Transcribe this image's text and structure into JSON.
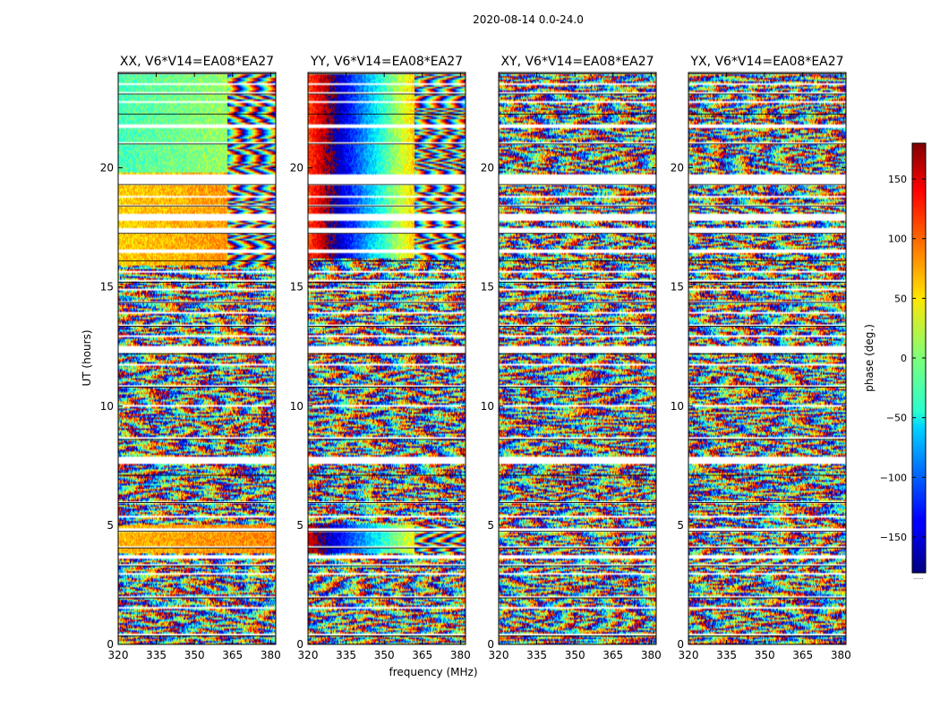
{
  "figure": {
    "suptitle": "2020-08-14 0.0-24.0",
    "xlabel": "frequency (MHz)",
    "ylabel": "UT (hours)",
    "colorbar_label": "phase (deg.)",
    "colorbar_extra": "......"
  },
  "chart_data": {
    "type": "heatmap",
    "colormap": "jet",
    "x_range": [
      320,
      382
    ],
    "y_range": [
      0,
      24
    ],
    "color_range": [
      -180,
      180
    ],
    "x_ticks": [
      320,
      335,
      350,
      365,
      380
    ],
    "y_ticks": [
      0,
      5,
      10,
      15,
      20
    ],
    "colorbar_ticks": [
      -150,
      -100,
      -50,
      0,
      50,
      100,
      150
    ],
    "flagged_hours": [
      [
        0.35,
        0.45
      ],
      [
        1.5,
        1.6
      ],
      [
        1.95,
        2.05
      ],
      [
        2.9,
        2.98
      ],
      [
        3.3,
        3.38
      ],
      [
        3.62,
        3.78
      ],
      [
        4.05,
        4.1
      ],
      [
        4.25,
        4.3
      ],
      [
        4.75,
        4.85
      ],
      [
        5.35,
        5.42
      ],
      [
        5.95,
        6.0
      ],
      [
        6.5,
        6.55
      ],
      [
        7.1,
        7.15
      ],
      [
        7.55,
        7.85
      ],
      [
        8.6,
        8.7
      ],
      [
        9.95,
        10.05
      ],
      [
        10.8,
        10.87
      ],
      [
        11.7,
        11.75
      ],
      [
        12.2,
        12.55
      ],
      [
        12.9,
        12.95
      ],
      [
        13.35,
        13.45
      ],
      [
        13.85,
        13.92
      ],
      [
        14.35,
        14.42
      ],
      [
        14.85,
        14.9
      ],
      [
        15.2,
        15.28
      ],
      [
        15.6,
        15.65
      ],
      [
        16.1,
        16.15
      ],
      [
        16.45,
        16.55
      ],
      [
        17.25,
        17.5
      ],
      [
        17.75,
        18.1
      ],
      [
        18.4,
        18.45
      ],
      [
        18.75,
        18.82
      ],
      [
        19.3,
        19.75
      ],
      [
        20.15,
        20.2
      ],
      [
        21.0,
        21.05
      ],
      [
        21.7,
        21.8
      ],
      [
        22.25,
        22.3
      ],
      [
        22.7,
        22.8
      ],
      [
        23.1,
        23.15
      ],
      [
        23.45,
        23.55
      ],
      [
        23.95,
        24.0
      ]
    ],
    "panels": [
      {
        "title": "XX, V6*V14=EA08*EA27",
        "coherent_bands": [
          {
            "t0": 19.8,
            "t1": 24.0,
            "f_end": 363,
            "phase0": -20,
            "slope": 0.7
          },
          {
            "t0": 15.9,
            "t1": 19.8,
            "f_end": 363,
            "phase0": 60,
            "slope": 0.5
          },
          {
            "t0": 3.8,
            "t1": 5.0,
            "f_end": 382,
            "phase0": 70,
            "slope": 0.3
          }
        ]
      },
      {
        "title": "YY, V6*V14=EA08*EA27",
        "coherent_bands": [
          {
            "t0": 16.2,
            "t1": 24.0,
            "f_end": 362,
            "phase0": 110,
            "slope": 7.5
          },
          {
            "t0": 3.8,
            "t1": 5.0,
            "f_end": 362,
            "phase0": 150,
            "slope": 6.0
          }
        ]
      },
      {
        "title": "XY, V6*V14=EA08*EA27",
        "coherent_bands": []
      },
      {
        "title": "YX, V6*V14=EA08*EA27",
        "coherent_bands": []
      }
    ]
  }
}
